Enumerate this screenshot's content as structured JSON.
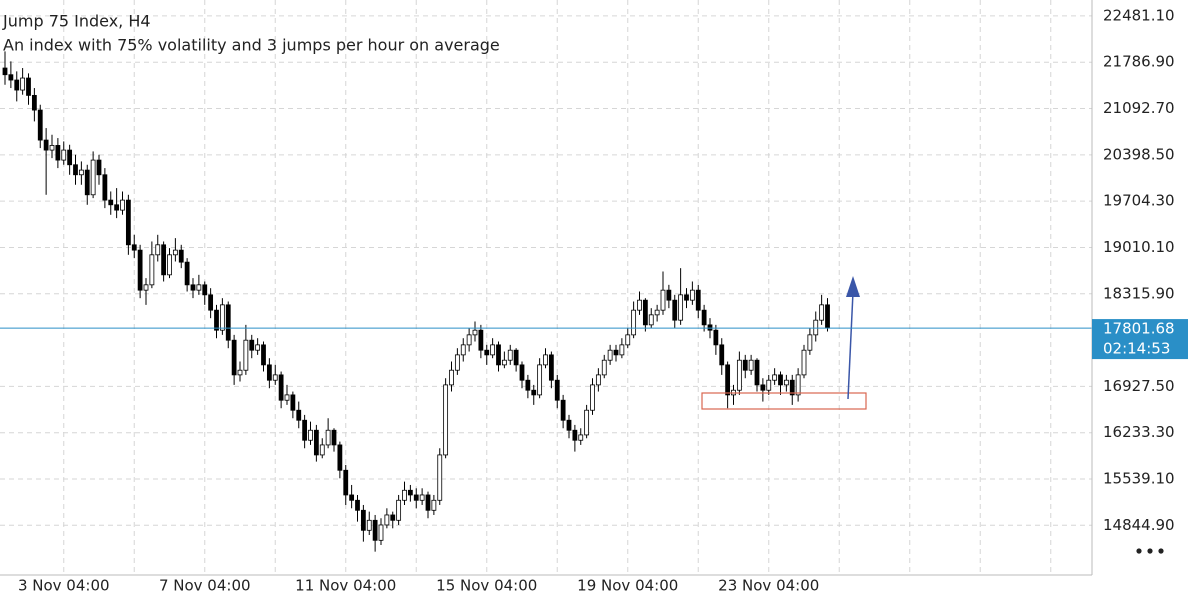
{
  "chart_data": {
    "type": "candlestick",
    "title": "Jump 75 Index, H4",
    "subtitle": "An index with 75% volatility and 3 jumps per hour on average",
    "categories": [
      null,
      null,
      null,
      null,
      null,
      null,
      null,
      null,
      null,
      null,
      "3 Nov 04:00",
      null,
      null,
      null,
      null,
      null,
      null,
      null,
      null,
      null,
      null,
      null,
      null,
      null,
      null,
      null,
      null,
      null,
      null,
      null,
      null,
      null,
      null,
      null,
      "7 Nov 04:00",
      null,
      null,
      null,
      null,
      null,
      null,
      null,
      null,
      null,
      null,
      null,
      null,
      null,
      null,
      null,
      null,
      null,
      null,
      null,
      null,
      null,
      null,
      null,
      "11 Nov 04:00",
      null,
      null,
      null,
      null,
      null,
      null,
      null,
      null,
      null,
      null,
      null,
      null,
      null,
      null,
      null,
      null,
      null,
      null,
      null,
      null,
      null,
      null,
      null,
      "15 Nov 04:00",
      null,
      null,
      null,
      null,
      null,
      null,
      null,
      null,
      null,
      null,
      null,
      null,
      null,
      null,
      null,
      null,
      null,
      null,
      null,
      null,
      null,
      null,
      null,
      "19 Nov 04:00",
      null,
      null,
      null,
      null,
      null,
      null,
      null,
      null,
      null,
      null,
      null,
      null,
      null,
      null,
      null,
      null,
      null,
      null,
      null,
      null,
      null,
      null,
      null,
      "23 Nov 04:00",
      null,
      null,
      null,
      null,
      null,
      null,
      null,
      null,
      null,
      null
    ],
    "candles": [
      [
        21700,
        21950,
        21450,
        21600
      ],
      [
        21600,
        21800,
        21400,
        21520
      ],
      [
        21520,
        21650,
        21200,
        21370
      ],
      [
        21370,
        21700,
        21300,
        21550
      ],
      [
        21550,
        21620,
        21150,
        21290
      ],
      [
        21290,
        21400,
        20900,
        21070
      ],
      [
        21070,
        21150,
        20500,
        20620
      ],
      [
        20620,
        20800,
        19800,
        20470
      ],
      [
        20470,
        20700,
        20350,
        20540
      ],
      [
        20540,
        20650,
        20200,
        20320
      ],
      [
        20320,
        20600,
        20250,
        20470
      ],
      [
        20470,
        20550,
        20100,
        20250
      ],
      [
        20250,
        20400,
        19950,
        20100
      ],
      [
        20100,
        20300,
        19950,
        20170
      ],
      [
        20170,
        20250,
        19650,
        19800
      ],
      [
        19800,
        20450,
        19750,
        20320
      ],
      [
        20320,
        20400,
        19950,
        20100
      ],
      [
        20100,
        20200,
        19600,
        19720
      ],
      [
        19720,
        19850,
        19500,
        19650
      ],
      [
        19650,
        19900,
        19450,
        19570
      ],
      [
        19570,
        19850,
        19500,
        19720
      ],
      [
        19720,
        19800,
        18900,
        19050
      ],
      [
        19050,
        19200,
        18850,
        18970
      ],
      [
        18970,
        19050,
        18250,
        18370
      ],
      [
        18370,
        18550,
        18150,
        18450
      ],
      [
        18450,
        19100,
        18400,
        18900
      ],
      [
        18900,
        19200,
        18800,
        19050
      ],
      [
        19050,
        19100,
        18500,
        18600
      ],
      [
        18600,
        19000,
        18550,
        18900
      ],
      [
        18900,
        19150,
        18800,
        18970
      ],
      [
        18970,
        19050,
        18700,
        18790
      ],
      [
        18790,
        18850,
        18350,
        18450
      ],
      [
        18450,
        18550,
        18250,
        18370
      ],
      [
        18370,
        18600,
        18300,
        18450
      ],
      [
        18450,
        18500,
        18150,
        18300
      ],
      [
        18300,
        18400,
        17950,
        18070
      ],
      [
        18070,
        18150,
        17650,
        17770
      ],
      [
        17770,
        18250,
        17700,
        18150
      ],
      [
        18150,
        18200,
        17500,
        17620
      ],
      [
        17620,
        17700,
        16950,
        17100
      ],
      [
        17100,
        17300,
        17000,
        17170
      ],
      [
        17170,
        17850,
        17100,
        17620
      ],
      [
        17620,
        17700,
        17350,
        17470
      ],
      [
        17470,
        17650,
        17400,
        17550
      ],
      [
        17550,
        17600,
        17150,
        17250
      ],
      [
        17250,
        17350,
        16900,
        17020
      ],
      [
        17020,
        17250,
        16950,
        17100
      ],
      [
        17100,
        17150,
        16600,
        16720
      ],
      [
        16720,
        16950,
        16650,
        16800
      ],
      [
        16800,
        16850,
        16450,
        16570
      ],
      [
        16570,
        16700,
        16300,
        16420
      ],
      [
        16420,
        16500,
        16000,
        16120
      ],
      [
        16120,
        16400,
        16050,
        16270
      ],
      [
        16270,
        16350,
        15800,
        15900
      ],
      [
        15900,
        16150,
        15850,
        16050
      ],
      [
        16050,
        16450,
        16000,
        16270
      ],
      [
        16270,
        16300,
        15950,
        16050
      ],
      [
        16050,
        16100,
        15550,
        15670
      ],
      [
        15670,
        15750,
        15150,
        15300
      ],
      [
        15300,
        15450,
        15100,
        15220
      ],
      [
        15220,
        15300,
        14900,
        15070
      ],
      [
        15070,
        15150,
        14600,
        14770
      ],
      [
        14770,
        15050,
        14700,
        14920
      ],
      [
        14920,
        15000,
        14450,
        14620
      ],
      [
        14620,
        14950,
        14550,
        14850
      ],
      [
        14850,
        15100,
        14800,
        15000
      ],
      [
        15000,
        15050,
        14800,
        14920
      ],
      [
        14920,
        15300,
        14850,
        15220
      ],
      [
        15220,
        15500,
        15150,
        15370
      ],
      [
        15370,
        15450,
        15200,
        15300
      ],
      [
        15300,
        15400,
        15100,
        15220
      ],
      [
        15220,
        15400,
        15150,
        15300
      ],
      [
        15300,
        15350,
        14950,
        15070
      ],
      [
        15070,
        15300,
        15000,
        15220
      ],
      [
        15220,
        16000,
        15150,
        15900
      ],
      [
        15900,
        17050,
        15850,
        16950
      ],
      [
        16950,
        17300,
        16850,
        17170
      ],
      [
        17170,
        17500,
        17100,
        17400
      ],
      [
        17400,
        17650,
        17300,
        17550
      ],
      [
        17550,
        17800,
        17450,
        17700
      ],
      [
        17700,
        17900,
        17600,
        17770
      ],
      [
        17770,
        17850,
        17350,
        17470
      ],
      [
        17470,
        17550,
        17250,
        17400
      ],
      [
        17400,
        17650,
        17350,
        17550
      ],
      [
        17550,
        17600,
        17150,
        17250
      ],
      [
        17250,
        17450,
        17200,
        17320
      ],
      [
        17320,
        17550,
        17250,
        17470
      ],
      [
        17470,
        17500,
        17150,
        17250
      ],
      [
        17250,
        17300,
        16900,
        17020
      ],
      [
        17020,
        17100,
        16750,
        16870
      ],
      [
        16870,
        16950,
        16650,
        16800
      ],
      [
        16800,
        17350,
        16750,
        17250
      ],
      [
        17250,
        17500,
        17200,
        17400
      ],
      [
        17400,
        17450,
        16900,
        17020
      ],
      [
        17020,
        17100,
        16600,
        16720
      ],
      [
        16720,
        16800,
        16300,
        16420
      ],
      [
        16420,
        16500,
        16150,
        16270
      ],
      [
        16270,
        16350,
        15950,
        16120
      ],
      [
        16120,
        16300,
        16050,
        16200
      ],
      [
        16200,
        16650,
        16150,
        16570
      ],
      [
        16570,
        17050,
        16500,
        16950
      ],
      [
        16950,
        17200,
        16850,
        17100
      ],
      [
        17100,
        17400,
        17050,
        17320
      ],
      [
        17320,
        17550,
        17250,
        17470
      ],
      [
        17470,
        17550,
        17300,
        17400
      ],
      [
        17400,
        17650,
        17350,
        17550
      ],
      [
        17550,
        17800,
        17500,
        17700
      ],
      [
        17700,
        18200,
        17650,
        18070
      ],
      [
        18070,
        18350,
        18000,
        18220
      ],
      [
        18220,
        18250,
        17750,
        17850
      ],
      [
        17850,
        18100,
        17800,
        18000
      ],
      [
        18000,
        18150,
        17900,
        18070
      ],
      [
        18070,
        18650,
        18000,
        18370
      ],
      [
        18370,
        18450,
        18100,
        18220
      ],
      [
        18220,
        18300,
        17800,
        17920
      ],
      [
        17920,
        18700,
        17850,
        18300
      ],
      [
        18300,
        18400,
        18100,
        18220
      ],
      [
        18220,
        18500,
        18150,
        18370
      ],
      [
        18370,
        18450,
        17950,
        18070
      ],
      [
        18070,
        18150,
        17750,
        17850
      ],
      [
        17850,
        17950,
        17650,
        17770
      ],
      [
        17770,
        17850,
        17400,
        17550
      ],
      [
        17550,
        17650,
        17100,
        17250
      ],
      [
        17250,
        17300,
        16600,
        16800
      ],
      [
        16800,
        16950,
        16650,
        16870
      ],
      [
        16870,
        17450,
        16800,
        17320
      ],
      [
        17320,
        17400,
        17050,
        17170
      ],
      [
        17170,
        17400,
        17100,
        17320
      ],
      [
        17320,
        17350,
        16850,
        16950
      ],
      [
        16950,
        17050,
        16700,
        16870
      ],
      [
        16870,
        17100,
        16800,
        17020
      ],
      [
        17020,
        17200,
        16950,
        17100
      ],
      [
        17100,
        17150,
        16800,
        16950
      ],
      [
        16950,
        17100,
        16850,
        17020
      ],
      [
        17020,
        17100,
        16650,
        16800
      ],
      [
        16800,
        17200,
        16700,
        17100
      ],
      [
        17100,
        17550,
        17050,
        17470
      ],
      [
        17470,
        17800,
        17400,
        17700
      ],
      [
        17700,
        18050,
        17600,
        17920
      ],
      [
        17920,
        18300,
        17850,
        18150
      ],
      [
        18150,
        18250,
        17750,
        17801.68
      ]
    ],
    "up_color": "#ffffff",
    "down_color": "#000000",
    "wick_color": "#000000",
    "ylim": [
      14100,
      22720
    ],
    "yticks": [
      {
        "value": 22481.1,
        "label": "22481.10"
      },
      {
        "value": 21786.9,
        "label": "21786.90"
      },
      {
        "value": 21092.7,
        "label": "21092.70"
      },
      {
        "value": 20398.5,
        "label": "20398.50"
      },
      {
        "value": 19704.3,
        "label": "19704.30"
      },
      {
        "value": 19010.1,
        "label": "19010.10"
      },
      {
        "value": 18315.9,
        "label": "18315.90"
      },
      {
        "value": 16927.5,
        "label": "16927.50"
      },
      {
        "value": 16233.3,
        "label": "16233.30"
      },
      {
        "value": 15539.1,
        "label": "15539.10"
      },
      {
        "value": 14844.9,
        "label": "14844.90"
      }
    ],
    "grid": true,
    "last_price": 17801.68,
    "last_price_color": "#2a8fc7",
    "countdown": "02:14:53"
  }
}
